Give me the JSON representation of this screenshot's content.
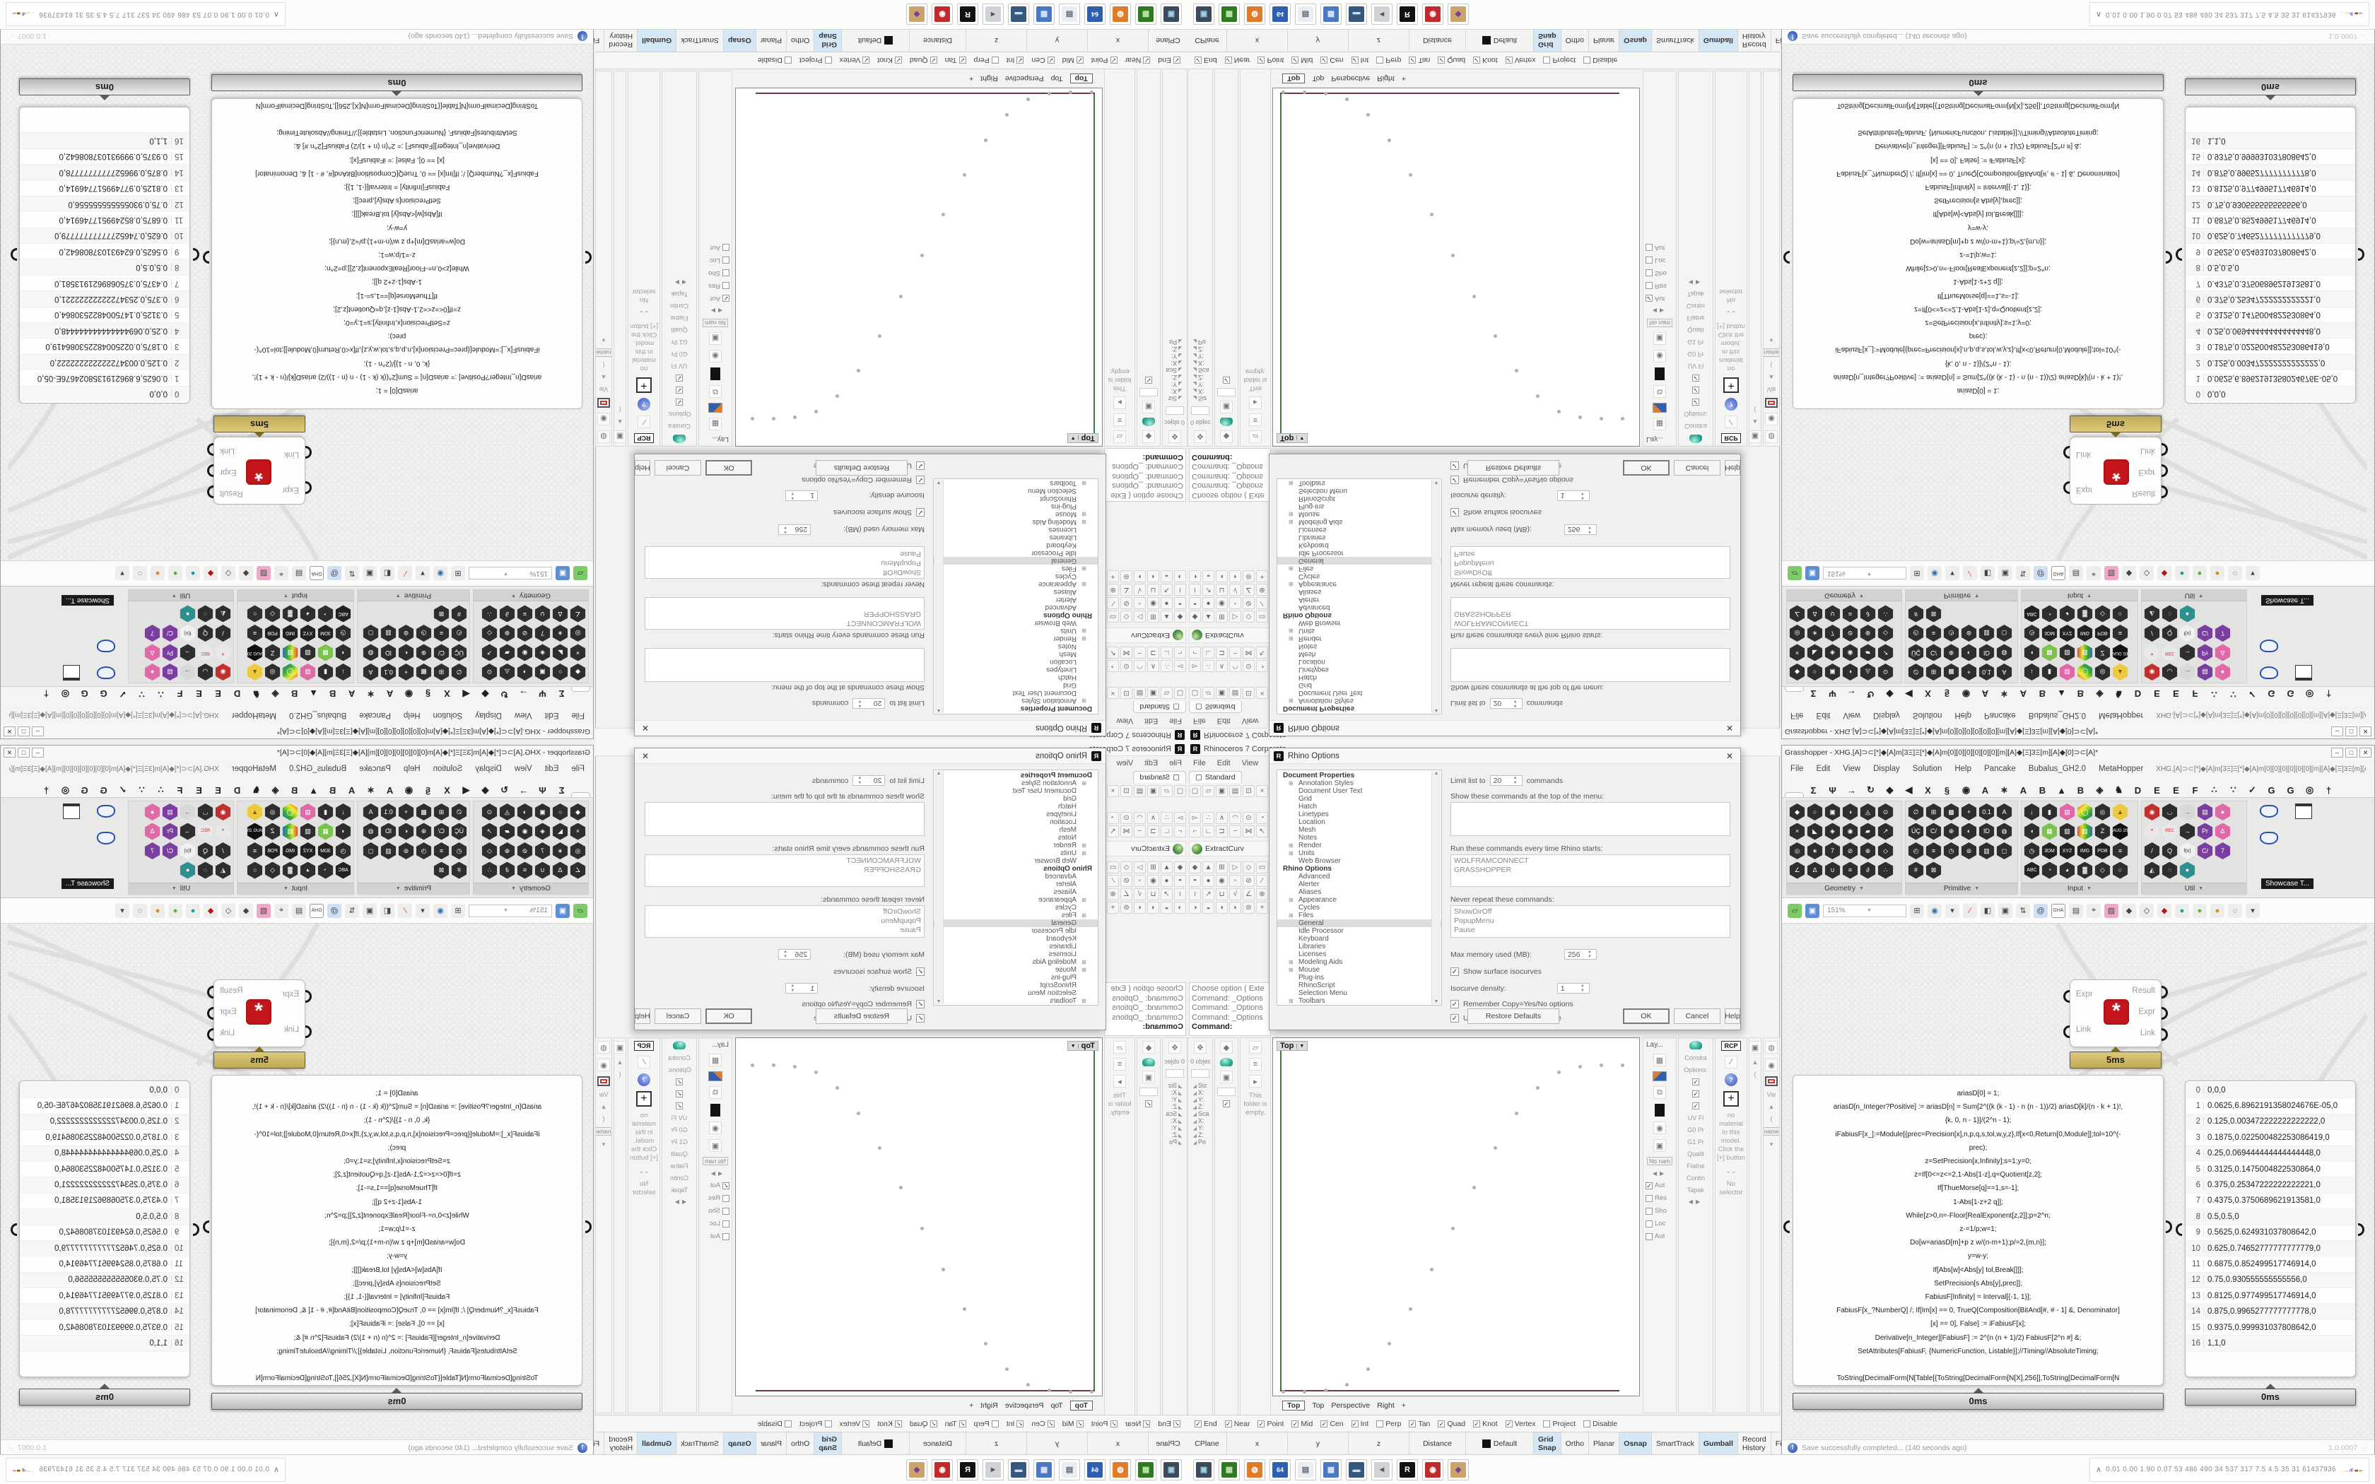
{
  "rhino": {
    "title": "Rhinoceros 7 Corporate -",
    "logo_glyph": "R",
    "menus": [
      "File",
      "Edit",
      "View",
      "Curve"
    ],
    "standard_tab": "Standard",
    "file_icons": [
      "▢",
      "▱",
      "▣",
      "▤",
      "⊡",
      "×"
    ],
    "toolgrid_a": [
      "▻",
      "∴",
      "∧",
      "◠",
      "⊙",
      "◔",
      "⌐",
      "∟",
      "⊐",
      "~",
      "⋈",
      "↖"
    ],
    "extract_label": "ExtractCurv",
    "toolgrid_b": [
      "◆",
      "▲",
      "⊞",
      "▷",
      "◇",
      "▭",
      "◓",
      "●",
      "◉",
      "▫",
      "⊘",
      "∕",
      "≀",
      "↗",
      "⊔",
      "√",
      "∠",
      "⊕",
      "◑",
      "◒",
      "◖",
      "◗",
      "⊜",
      "+"
    ],
    "cmd_lines": [
      "Choose option ( Exte",
      "Command: _Options",
      "Command: _Options",
      "Command: _Options"
    ],
    "cmd_prompt": "Command:",
    "dock": {
      "obj": "0 objec",
      "rows": [
        "Siz",
        "X:",
        "Y:",
        "Z:",
        "Sca",
        "X:",
        "Y:",
        "Z:",
        "Po"
      ],
      "empty": "This folder is empty."
    },
    "viewport": {
      "label": "Top",
      "tabs": [
        {
          "label": "Top",
          "active": 1
        },
        {
          "label": "Top"
        },
        {
          "label": "Perspective"
        },
        {
          "label": "Right"
        },
        {
          "label": "+"
        }
      ]
    },
    "osnap": [
      {
        "label": "End",
        "on": 1
      },
      {
        "label": "Near",
        "on": 1
      },
      {
        "label": "Point",
        "on": 1
      },
      {
        "label": "Mid",
        "on": 1
      },
      {
        "label": "Cen",
        "on": 1
      },
      {
        "label": "Int",
        "on": 1
      },
      {
        "label": "Perp"
      },
      {
        "label": "Tan",
        "on": 1
      },
      {
        "label": "Quad",
        "on": 1
      },
      {
        "label": "Knot",
        "on": 1
      },
      {
        "label": "Vertex",
        "on": 1
      },
      {
        "label": "Project"
      },
      {
        "label": "Disable"
      }
    ],
    "status_left": [
      {
        "label": "CPlane",
        "css": "width:56px"
      },
      {
        "label": "x",
        "css": "width:86px"
      },
      {
        "label": "y",
        "css": "width:86px"
      },
      {
        "label": "z",
        "css": "width:86px"
      },
      {
        "label": "Distance",
        "css": "width:80px"
      },
      {
        "label": "Default",
        "css": "width:96px",
        "swatch": 1
      }
    ],
    "status_right": [
      {
        "label": "Grid Snap",
        "hl": 1
      },
      {
        "label": "Ortho"
      },
      {
        "label": "Planar"
      },
      {
        "label": "Osnap",
        "hl": 1
      },
      {
        "label": "SmartTrack"
      },
      {
        "label": "Gumball",
        "hl": 1
      },
      {
        "label": "Record History"
      },
      {
        "label": "Filter"
      }
    ],
    "right_panels": {
      "lay": "Lay...",
      "constra": "Constra",
      "contin": "Contin",
      "tapak": "Tapak",
      "options": "Options:",
      "uv": "UV Fl",
      "g0": "G0 Pr",
      "g1": "G1 Pr",
      "quality": "Qualit",
      "flatness": "Flatne",
      "rcp": "RCP",
      "no_material": "no material in this model. Click the [+] button",
      "chevrons": "⌄⌄",
      "no_selector": "No selector",
      "no_name": "No nam",
      "aut": "Aut",
      "res": "Res",
      "sho": "Sho",
      "loc": "Loc",
      "aut2": "Aut",
      "vie": "Vie",
      "name": "name"
    },
    "dialog": {
      "title": "Rhino Options",
      "tree": [
        {
          "label": "Document Properties",
          "b": 1
        },
        {
          "label": "Annotation Styles",
          "ind": 1,
          "exp": 1
        },
        {
          "label": "Document User Text",
          "ind": 1
        },
        {
          "label": "Grid",
          "ind": 1
        },
        {
          "label": "Hatch",
          "ind": 1
        },
        {
          "label": "Linetypes",
          "ind": 1
        },
        {
          "label": "Location",
          "ind": 1
        },
        {
          "label": "Mesh",
          "ind": 1
        },
        {
          "label": "Notes",
          "ind": 1
        },
        {
          "label": "Render",
          "ind": 1,
          "exp": 1
        },
        {
          "label": "Units",
          "ind": 1,
          "exp": 1
        },
        {
          "label": "Web Browser",
          "ind": 1
        },
        {
          "label": "Rhino Options",
          "b": 1
        },
        {
          "label": "Advanced",
          "ind": 1
        },
        {
          "label": "Alerter",
          "ind": 1
        },
        {
          "label": "Aliases",
          "ind": 1
        },
        {
          "label": "Appearance",
          "ind": 1,
          "exp": 1
        },
        {
          "label": "Cycles",
          "ind": 1
        },
        {
          "label": "Files",
          "ind": 1,
          "exp": 1
        },
        {
          "label": "General",
          "ind": 1,
          "sel": 1
        },
        {
          "label": "Idle Processor",
          "ind": 1
        },
        {
          "label": "Keyboard",
          "ind": 1
        },
        {
          "label": "Libraries",
          "ind": 1
        },
        {
          "label": "Licenses",
          "ind": 1
        },
        {
          "label": "Modeling Aids",
          "ind": 1,
          "exp": 1
        },
        {
          "label": "Mouse",
          "ind": 1,
          "exp": 1
        },
        {
          "label": "Plug-ins",
          "ind": 1
        },
        {
          "label": "RhinoScript",
          "ind": 1
        },
        {
          "label": "Selection Menu",
          "ind": 1
        },
        {
          "label": "Toolbars",
          "ind": 1,
          "exp": 1
        }
      ],
      "limit_label": "Limit list to",
      "limit_value": "20",
      "limit_suffix": "commands",
      "show_label": "Show these commands at the top of the menu:",
      "run_label": "Run these commands every time Rhino starts:",
      "run_value": "WOLFRAMCONNECT\nGRASSHOPPER",
      "never_label": "Never repeat these commands:",
      "never_value": "ShowDirOff\nPopupMenu\nPause",
      "mem_label": "Max memory used (MB):",
      "mem_value": "256",
      "iso_label": "Show surface isocurves",
      "density_label": "Isocurve density:",
      "density_value": "1",
      "remember_label": "Remember Copy=Yes/No options",
      "extrusions_label": "Use extrusions when possible",
      "restore": "Restore Defaults",
      "ok": "OK",
      "cancel": "Cancel",
      "help": "Help",
      "close_glyph": "✕"
    }
  },
  "grasshopper": {
    "title": "Grasshopper - XHG.[A]⊃⊂[*]◆[A]m[3Ξ]Ξ[*]◆[A]m[0][0][0][0][0][0][m][A]◆[Ξ]3Ξ[m][A]◆[0]⊃⊂[A]*",
    "window_buttons": [
      "–",
      "□",
      "✕"
    ],
    "menus": [
      "File",
      "Edit",
      "View",
      "Display",
      "Solution",
      "Help",
      "Pancake",
      "Bubalus_GH2.0",
      "MetaHopper"
    ],
    "doc_label": "XHG.[A]⊃⊂[*]◆[A]m[3Ξ]Ξ[*]◆[A]m[0][0][0][0][0][0][m][A]◆[Ξ]3Ξ[m][A]◆[0]⊃⊂[A]",
    "tabs": [
      {
        "g": "",
        "hex": 1,
        "active": 1
      },
      {
        "g": "Σ"
      },
      {
        "g": "Ψ"
      },
      {
        "g": "→"
      },
      {
        "g": "↻"
      },
      {
        "g": "◆"
      },
      {
        "g": "◀"
      },
      {
        "g": "X"
      },
      {
        "g": "§"
      },
      {
        "g": "◉"
      },
      {
        "g": "A"
      },
      {
        "g": "∗"
      },
      {
        "g": "A"
      },
      {
        "g": "B"
      },
      {
        "g": "▲"
      },
      {
        "g": "B"
      },
      {
        "g": "◈"
      },
      {
        "g": "♞"
      },
      {
        "g": "D"
      },
      {
        "g": "E"
      },
      {
        "g": "E"
      },
      {
        "g": "F"
      },
      {
        "g": "∴"
      },
      {
        "g": "∵"
      },
      {
        "g": "✓"
      },
      {
        "g": "G"
      },
      {
        "g": "G"
      },
      {
        "g": "◎"
      },
      {
        "g": "†"
      }
    ],
    "palette": {
      "geometry": {
        "name": "Geometry",
        "icons": [
          {
            "g": "◆"
          },
          {
            "g": "○"
          },
          {
            "g": "▣"
          },
          {
            "g": "◑"
          },
          {
            "g": "◬"
          },
          {
            "g": "⊙"
          },
          {
            "g": "×"
          },
          {
            "g": "◣"
          },
          {
            "g": "◈"
          },
          {
            "g": "◉"
          },
          {
            "g": "▰"
          },
          {
            "g": "↗"
          },
          {
            "g": "◎"
          },
          {
            "g": "∗"
          },
          {
            "g": "7"
          },
          {
            "g": "⊘"
          },
          {
            "g": "⊕"
          },
          {
            "g": "◇"
          },
          {
            "g": "∠"
          },
          {
            "g": "∆"
          },
          {
            "g": "∪"
          },
          {
            "g": "≡"
          },
          {
            "g": "∂"
          },
          {
            "g": "∴"
          }
        ]
      },
      "primitive": {
        "name": "Primitive",
        "icons": [
          {
            "g": "∅"
          },
          {
            "g": "⊞"
          },
          {
            "g": "▩"
          },
          {
            "g": "+"
          },
          {
            "g": "0.1"
          },
          {
            "g": "A"
          },
          {
            "g": "ÜÇ"
          },
          {
            "g": "C/"
          },
          {
            "g": "⊕"
          },
          {
            "g": "◐"
          },
          {
            "g": "ID"
          },
          {
            "g": "◍"
          },
          {
            "g": "◴"
          },
          {
            "g": "≡"
          },
          {
            "g": "◷"
          },
          {
            "g": "⊚"
          },
          {
            "g": "▥"
          },
          {
            "g": "◻"
          },
          {
            "g": "#"
          },
          {
            "g": "⊠"
          }
        ]
      },
      "input": {
        "name": "Input",
        "icons": [
          {
            "g": "↓"
          },
          {
            "g": "▮"
          },
          {
            "g": "▤",
            "css": "background:#e06aa8;color:#fff"
          },
          {
            "g": "◯",
            "css": "background:linear-gradient(135deg,#e33,#ee3,#3a3,#36c);color:#fff"
          },
          {
            "g": "◎"
          },
          {
            "g": "▲",
            "css": "background:#edc93d;color:#7a5b00"
          },
          {
            "g": "◖"
          },
          {
            "g": "▦",
            "css": "background:#7cc24e;color:#fff"
          },
          {
            "g": "▧"
          },
          {
            "g": "▥",
            "css": "background:linear-gradient(90deg,#d33,#dd3,#3a3,#36c);color:#fff"
          },
          {
            "g": "Z"
          },
          {
            "g": "AUG 20",
            "css": "background:#111;color:#fff;font-size:6px"
          },
          {
            "g": "◷"
          },
          {
            "g": "3DM",
            "css": "background:#222;color:#fff;font-size:7px"
          },
          {
            "g": "XYZ",
            "css": "background:#222;color:#fff;font-size:7px"
          },
          {
            "g": "IMG",
            "css": "background:#222;color:#fff;font-size:7px"
          },
          {
            "g": "PDB",
            "css": "background:#222;color:#fff;font-size:7px"
          },
          {
            "g": "≡"
          },
          {
            "g": "ABC",
            "css": "background:#222;color:#fff;font-size:7px"
          },
          {
            "g": "◔"
          },
          {
            "g": "◕"
          },
          {
            "g": "▓"
          },
          {
            "g": "◇"
          },
          {
            "g": "○"
          }
        ]
      },
      "util": {
        "name": "Util",
        "icons": [
          {
            "g": "◉",
            "css": "background:#c03030;color:#fff"
          },
          {
            "g": "◡"
          },
          {
            "g": "→",
            "css": "background:#d8d8d8;color:#555"
          },
          {
            "g": "▤",
            "css": "background:#7a3f9e;color:#fff"
          },
          {
            "g": "●",
            "css": "background:#e06aa8;color:#fff"
          },
          {
            "g": "*",
            "css": "background:#e8e8e8;color:#c22"
          },
          {
            "g": "REC",
            "css": "background:#e8e8e8;color:#c22;font-size:6px"
          },
          {
            "g": "→"
          },
          {
            "g": "Pr",
            "css": "background:#7a3f9e;color:#fff"
          },
          {
            "g": "Δ",
            "css": "background:#e06aa8;color:#fff"
          },
          {
            "g": "/"
          },
          {
            "g": "Q"
          },
          {
            "g": "f(x)",
            "css": "background:#f0f0f0;color:#333;font-size:7px"
          },
          {
            "g": "C/",
            "css": "background:#7a3f9e;color:#fff"
          },
          {
            "g": "7",
            "css": "background:#7a3f9e;color:#fff"
          },
          {
            "g": "◭"
          },
          {
            "g": "◌"
          },
          {
            "g": "●",
            "css": "background:#2e8f8f;color:#fff"
          }
        ]
      }
    },
    "showcase_tooltip": "Showcase T...",
    "canvas_toolbar": {
      "zoom": "151%",
      "left_icons": [
        {
          "g": "▱",
          "css": "background:#7ec96a;color:#1c4d12"
        },
        {
          "g": "▣",
          "css": "background:#5b8fd4;color:#fff"
        }
      ],
      "right_icons": [
        {
          "g": "⊞"
        },
        {
          "g": "◉",
          "css": "color:#2b6fb3"
        },
        {
          "g": "▾"
        },
        {
          "g": "∕",
          "css": "color:#c33"
        },
        {
          "g": "◧"
        },
        {
          "g": "▣"
        },
        {
          "g": "⇅"
        },
        {
          "g": "@",
          "css": "background:#cfe0f5"
        },
        {
          "g": "GHA",
          "css": "font-size:7px;border:1px solid #999;background:#fff"
        },
        {
          "g": "▤"
        },
        {
          "g": "⌖"
        },
        {
          "g": "▨",
          "css": "background:#f0a8c8"
        },
        {
          "g": "◆"
        },
        {
          "g": "◇"
        },
        {
          "g": "◆",
          "css": "color:#b5121b"
        },
        {
          "g": "●",
          "css": "color:#1d9e9e"
        },
        {
          "g": "●",
          "css": "color:#5cb332"
        },
        {
          "g": "●",
          "css": "color:#e0861a"
        },
        {
          "g": "◌"
        },
        {
          "g": "▾"
        }
      ]
    },
    "expr_node": {
      "in1": "Expr",
      "in2": "Link",
      "out1": "Result",
      "out2": "Expr",
      "out3": "Link",
      "icon_glyph": "*",
      "time": "5ms"
    },
    "code_panel": {
      "time": "0ms",
      "lines": [
        "ariasD[0] = 1;",
        "ariasD[n_Integer?Positive] := ariasD[n] = Sum[2^((k (k - 1) - n (n - 1))/2) ariasD[k]/(n - k + 1)!,",
        "{k, 0, n - 1}]/(2^n - 1);",
        "iFabiusF[x_]:=Module[{prec=Precision[x],n,p,q,s,tol,w,y,z},If[x<0,Return[0,Module]];tol=10^(-",
        "prec);",
        "z=SetPrecision[x,Infinity];s=1;y=0;",
        "z=If[0<=z<=2,1-Abs[1-z],q=Quotient[z,2];",
        "If[ThueMorse[q]==1,s=-1];",
        "1-Abs[1-z+2 q]];",
        "While[z>0,n=-Floor[RealExponent[z,2]];p=2^n;",
        "z-=1/p;w=1;",
        "Do[w=ariasD[m]+p z w/(n-m+1);p/=2,{m,n}];",
        "y=w-y;",
        "If[Abs[w]<Abs[y] tol,Break[]]];",
        "SetPrecision[s Abs[y],prec]];",
        "FabiusF[Infinity] = Interval[{-1, 1}];",
        "FabiusF[x_?NumberQ] /; If[Im[x] == 0, TrueQ[Composition[BitAnd[#, # - 1] &, Denominator]",
        "[x] == 0], False] := iFabiusF[x];",
        "Derivative[n_Integer][FabiusF] := 2^(n (n + 1)/2) FabiusF[2^n #] &;",
        "SetAttributes[FabiusF, {NumericFunction, Listable}];//Timing//AbsoluteTiming;",
        "",
        "ToString[DecimalForm[N[Table[{ToString[DecimalForm[N[X],256]],ToString[DecimalForm[N",
        "[FabiusF[X]],256]],ToString[DecimalForm[N[0],256]]},{X,0,N[1],N[1/16]}]],256]]"
      ]
    },
    "data_panel": {
      "time": "0ms",
      "rows": [
        {
          "i": "0",
          "v": "0,0,0"
        },
        {
          "i": "1",
          "v": "0.0625,6.8962191358024676E-05,0"
        },
        {
          "i": "2",
          "v": "0.125,0.003472222222222222,0"
        },
        {
          "i": "3",
          "v": "0.1875,0.022500482253086419,0"
        },
        {
          "i": "4",
          "v": "0.25,0.069444444444444448,0"
        },
        {
          "i": "5",
          "v": "0.3125,0.1475004822530864,0"
        },
        {
          "i": "6",
          "v": "0.375,0.25347222222222221,0"
        },
        {
          "i": "7",
          "v": "0.4375,0.3750689621913581,0"
        },
        {
          "i": "8",
          "v": "0.5,0.5,0"
        },
        {
          "i": "9",
          "v": "0.5625,0.624931037808642,0"
        },
        {
          "i": "10",
          "v": "0.625,0.74652777777777779,0"
        },
        {
          "i": "11",
          "v": "0.6875,0.852499517746914,0"
        },
        {
          "i": "12",
          "v": "0.75,0.930555555555556,0"
        },
        {
          "i": "13",
          "v": "0.8125,0.977499517746914,0"
        },
        {
          "i": "14",
          "v": "0.875,0.9965277777777778,0"
        },
        {
          "i": "15",
          "v": "0.9375,0.999931037808642,0"
        },
        {
          "i": "16",
          "v": "1,1,0"
        }
      ]
    },
    "status": {
      "message": "Save successfully completed... (140 seconds ago)",
      "version": "1.0.0007"
    }
  },
  "taskbar": {
    "icons": [
      {
        "g": "▣",
        "css": "background:#3b4a5a;color:#9fd0e8"
      },
      {
        "g": "▦",
        "css": "background:#2f7a22;color:#bfe8b0"
      },
      {
        "g": "◍",
        "css": "background:#e07b2a;color:#fff"
      },
      {
        "g": "64",
        "css": "background:#2f5fb0;color:#fff;font-size:9px"
      },
      {
        "g": "▤",
        "css": "background:#e8eef2;color:#667"
      },
      {
        "g": "▦",
        "css": "background:#4a78c2;color:#dfe8f8"
      },
      {
        "g": "▬",
        "css": "background:#35597e;color:#cfe0f0"
      },
      {
        "g": "◄",
        "css": "background:#cfd2d6;color:#555"
      },
      {
        "g": "R",
        "css": "background:#111;color:#fff"
      },
      {
        "g": "◉",
        "css": "background:#c22b2b;color:#fff"
      },
      {
        "g": "◆",
        "css": "background:#caa46b;color:#7a3f9e"
      }
    ],
    "metrics_chevron": "∧",
    "metrics": "0.01 0.00 1.90 0.07   53   486   490   34   537   317   7.5   4.5   35   31   61437936"
  }
}
